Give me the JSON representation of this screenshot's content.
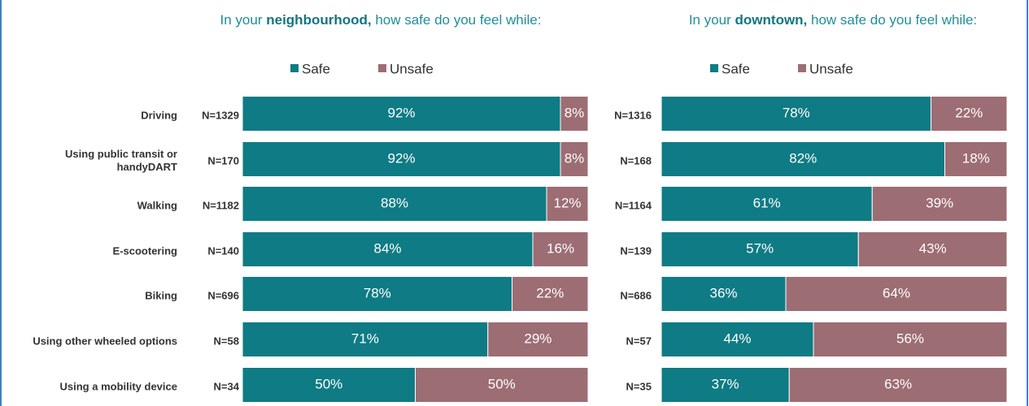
{
  "chart_data": [
    {
      "type": "stacked-bar-horizontal",
      "title": [
        "In your ",
        "neighbourhood,",
        " how safe do you feel while:"
      ],
      "categories": [
        "Driving",
        "Using public transit or\nhandyDART",
        "Walking",
        "E-scootering",
        "Biking",
        "Using other wheeled options",
        "Using a mobility device"
      ],
      "n_labels": [
        "N=1329",
        "N=170",
        "N=1182",
        "N=140",
        "N=696",
        "N=58",
        "N=34"
      ],
      "xlim": [
        0,
        100
      ],
      "series": [
        {
          "name": "Safe",
          "color": "#0f7b85",
          "values": [
            92,
            92,
            88,
            84,
            78,
            71,
            50
          ],
          "value_labels": [
            "92%",
            "92%",
            "88%",
            "84%",
            "78%",
            "71%",
            "50%"
          ]
        },
        {
          "name": "Unsafe",
          "color": "#9d6d74",
          "values": [
            8,
            8,
            12,
            16,
            22,
            29,
            50
          ],
          "value_labels": [
            "8%",
            "8%",
            "12%",
            "16%",
            "22%",
            "29%",
            "50%"
          ]
        }
      ]
    },
    {
      "type": "stacked-bar-horizontal",
      "title": [
        "In your ",
        "downtown,",
        " how safe do you feel while:"
      ],
      "n_labels": [
        "N=1316",
        "N=168",
        "N=1164",
        "N=139",
        "N=686",
        "N=57",
        "N=35"
      ],
      "xlim": [
        0,
        100
      ],
      "series": [
        {
          "name": "Safe",
          "color": "#0f7b85",
          "values": [
            78,
            82,
            61,
            57,
            36,
            44,
            37
          ],
          "value_labels": [
            "78%",
            "82%",
            "61%",
            "57%",
            "36%",
            "44%",
            "37%"
          ]
        },
        {
          "name": "Unsafe",
          "color": "#9d6d74",
          "values": [
            22,
            18,
            39,
            43,
            64,
            56,
            63
          ],
          "value_labels": [
            "22%",
            "18%",
            "39%",
            "43%",
            "64%",
            "56%",
            "63%"
          ]
        }
      ]
    }
  ]
}
